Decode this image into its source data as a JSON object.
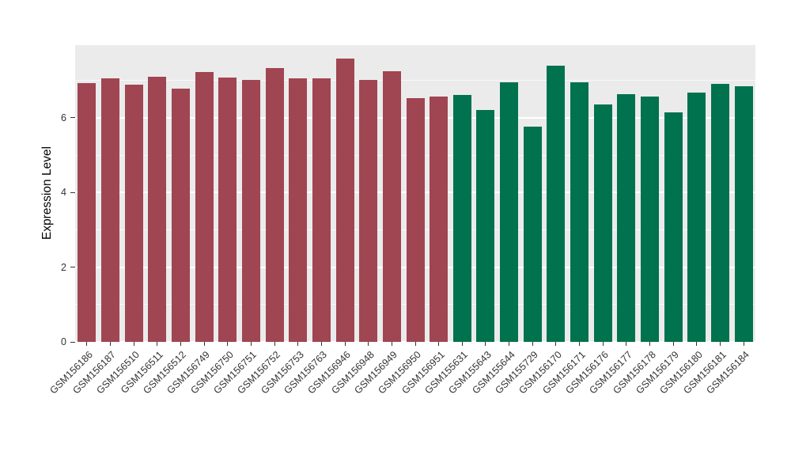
{
  "figure": {
    "background": "#FFFFFF"
  },
  "chart_data": {
    "type": "bar",
    "title": "",
    "xlabel": "",
    "ylabel": "Expression Level",
    "ylim": [
      0,
      7.95
    ],
    "yticks": [
      0,
      2,
      4,
      6
    ],
    "grid": "major-and-minor",
    "legend": "none",
    "panel_background": "#EBEBEB",
    "gridline_color": "#FFFFFF",
    "categories": [
      "GSM156186",
      "GSM156187",
      "GSM156510",
      "GSM156511",
      "GSM156512",
      "GSM156749",
      "GSM156750",
      "GSM156751",
      "GSM156752",
      "GSM156753",
      "GSM156763",
      "GSM156946",
      "GSM156948",
      "GSM156949",
      "GSM156950",
      "GSM156951",
      "GSM155631",
      "GSM155643",
      "GSM155644",
      "GSM155729",
      "GSM156170",
      "GSM156171",
      "GSM156176",
      "GSM156177",
      "GSM156178",
      "GSM156179",
      "GSM156180",
      "GSM156181",
      "GSM156184"
    ],
    "values": [
      6.93,
      7.07,
      6.89,
      7.11,
      6.78,
      7.22,
      7.09,
      7.02,
      7.33,
      7.07,
      7.07,
      7.59,
      7.02,
      7.26,
      6.52,
      6.57,
      6.61,
      6.22,
      6.96,
      5.76,
      7.39,
      6.96,
      6.35,
      6.63,
      6.57,
      6.15,
      6.67,
      6.91,
      6.85
    ],
    "group_of_bar": [
      0,
      0,
      0,
      0,
      0,
      0,
      0,
      0,
      0,
      0,
      0,
      0,
      0,
      0,
      0,
      0,
      1,
      1,
      1,
      1,
      1,
      1,
      1,
      1,
      1,
      1,
      1,
      1,
      1
    ],
    "group_colors": [
      "#A04552",
      "#00724E"
    ]
  }
}
